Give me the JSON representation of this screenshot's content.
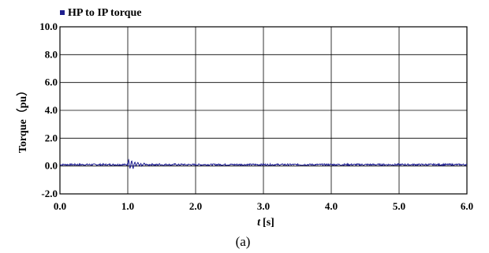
{
  "chart_data": {
    "type": "line",
    "xlabel_var": "t",
    "xlabel_unit": "[s]",
    "ylabel": "Torque（pu）",
    "xlim": [
      0.0,
      6.0
    ],
    "ylim": [
      -2.0,
      10.0
    ],
    "x_ticks": [
      "0.0",
      "1.0",
      "2.0",
      "3.0",
      "4.0",
      "5.0",
      "6.0"
    ],
    "y_ticks": [
      "10.0",
      "8.0",
      "6.0",
      "4.0",
      "2.0",
      "0.0",
      "-2.0"
    ],
    "grid": true,
    "legend_position": "top-left",
    "series": [
      {
        "name": "HP to IP torque",
        "color": "#1f1f8f",
        "steady_value": 0.1,
        "disturbance_start": 1.0,
        "disturbance_peak": 0.5,
        "disturbance_min": -0.3,
        "noise_amplitude": 0.06
      }
    ],
    "caption": "(a)"
  }
}
